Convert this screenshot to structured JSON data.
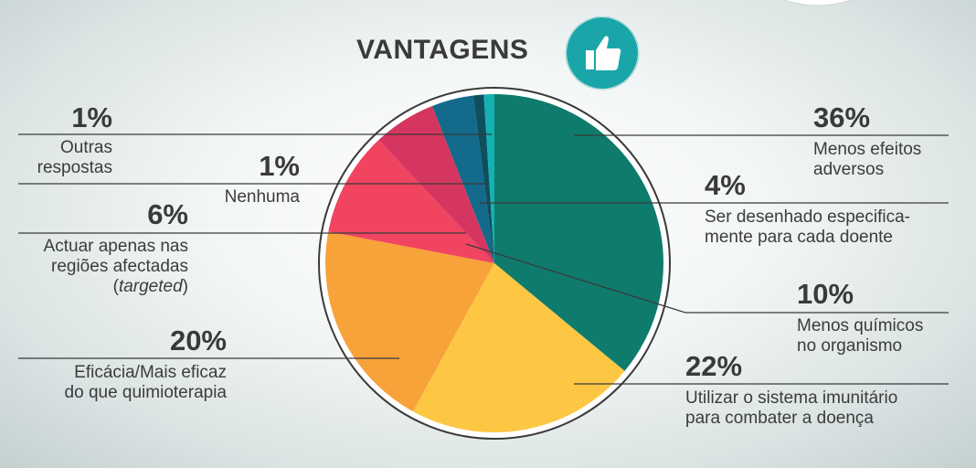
{
  "chart_data": {
    "type": "pie",
    "title": "VANTAGENS",
    "slices": [
      {
        "label": "Menos efeitos adversos",
        "value": 36,
        "pct_label": "36%",
        "color": "#0e7b6c"
      },
      {
        "label": "Utilizar o sistema imunitário para combater a doença",
        "value": 22,
        "pct_label": "22%",
        "color": "#fdc744"
      },
      {
        "label": "Eficácia/Mais eficaz do que quimioterapia",
        "value": 20,
        "pct_label": "20%",
        "color": "#f8a23a"
      },
      {
        "label": "Menos químicos no organismo",
        "value": 10,
        "pct_label": "10%",
        "color": "#f04461"
      },
      {
        "label": "Actuar apenas nas regiões afectadas (targeted)",
        "value": 6,
        "pct_label": "6%",
        "color": "#d5365f"
      },
      {
        "label": "Ser desenhado especificamente para cada doente",
        "value": 4,
        "pct_label": "4%",
        "color": "#136a8a"
      },
      {
        "label": "Nenhuma",
        "value": 1,
        "pct_label": "1%",
        "color": "#0d4f5f"
      },
      {
        "label": "Outras respostas",
        "value": 1,
        "pct_label": "1%",
        "color": "#14b1b2"
      }
    ]
  },
  "labels": {
    "s36": {
      "pct": "36%",
      "line1": "Menos efeitos",
      "line2": "adversos"
    },
    "s4": {
      "pct": "4%",
      "line1": "Ser desenhado especifica-",
      "line2": "mente para cada doente"
    },
    "s10": {
      "pct": "10%",
      "line1": "Menos químicos",
      "line2": "no organismo"
    },
    "s22": {
      "pct": "22%",
      "line1": "Utilizar o sistema imunitário",
      "line2": "para combater a doença"
    },
    "s20": {
      "pct": "20%",
      "line1": "Eficácia/Mais eficaz",
      "line2": "do que quimioterapia"
    },
    "s6": {
      "pct": "6%",
      "line1": "Actuar apenas nas",
      "line2": "regiões afectadas",
      "line3a": "(",
      "line3b": "targeted",
      "line3c": ")"
    },
    "s1n": {
      "pct": "1%",
      "line1": "Nenhuma"
    },
    "s1o": {
      "pct": "1%",
      "line1": "Outras",
      "line2": "respostas"
    }
  },
  "icon": {
    "name": "thumbs-up-icon",
    "color": "#1aa6a8"
  }
}
